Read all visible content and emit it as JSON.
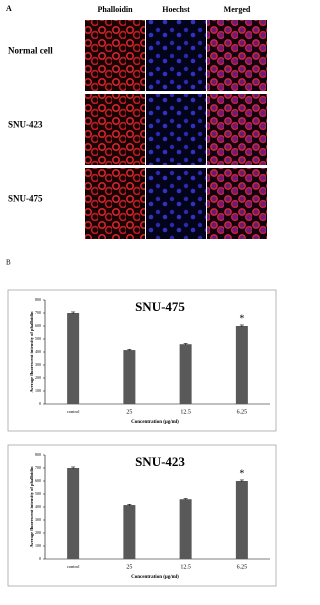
{
  "panel_a": {
    "label": "A",
    "columns": [
      "Phalloidin",
      "Hoechst",
      "Merged"
    ],
    "rows": [
      "Normal cell",
      "SNU-423",
      "SNU-475"
    ]
  },
  "panel_b": {
    "label": "B"
  },
  "chart_data": [
    {
      "type": "bar",
      "title": "SNU-475",
      "categories": [
        "control",
        "25",
        "12.5",
        "6.25"
      ],
      "values": [
        700,
        415,
        460,
        600
      ],
      "errors": [
        8,
        5,
        5,
        8
      ],
      "value_annotations": [
        null,
        null,
        null,
        "*"
      ],
      "color": "#595959",
      "ylabel": "Average fluorescent intensity of phalloidin",
      "xlabel": "Concentration (μg/ml)",
      "ylim": [
        0,
        800
      ],
      "yticks": [
        0,
        100,
        200,
        300,
        400,
        500,
        600,
        700,
        800
      ]
    },
    {
      "type": "bar",
      "title": "SNU-423",
      "categories": [
        "control",
        "25",
        "12.5",
        "6.25"
      ],
      "values": [
        700,
        415,
        460,
        600
      ],
      "errors": [
        8,
        5,
        5,
        8
      ],
      "value_annotations": [
        null,
        null,
        null,
        "*"
      ],
      "color": "#595959",
      "ylabel": "Average fluorescent intensity of phalloidin",
      "xlabel": "Concentration (μg/ml)",
      "ylim": [
        0,
        800
      ],
      "yticks": [
        0,
        100,
        200,
        300,
        400,
        500,
        600,
        700,
        800
      ]
    }
  ]
}
